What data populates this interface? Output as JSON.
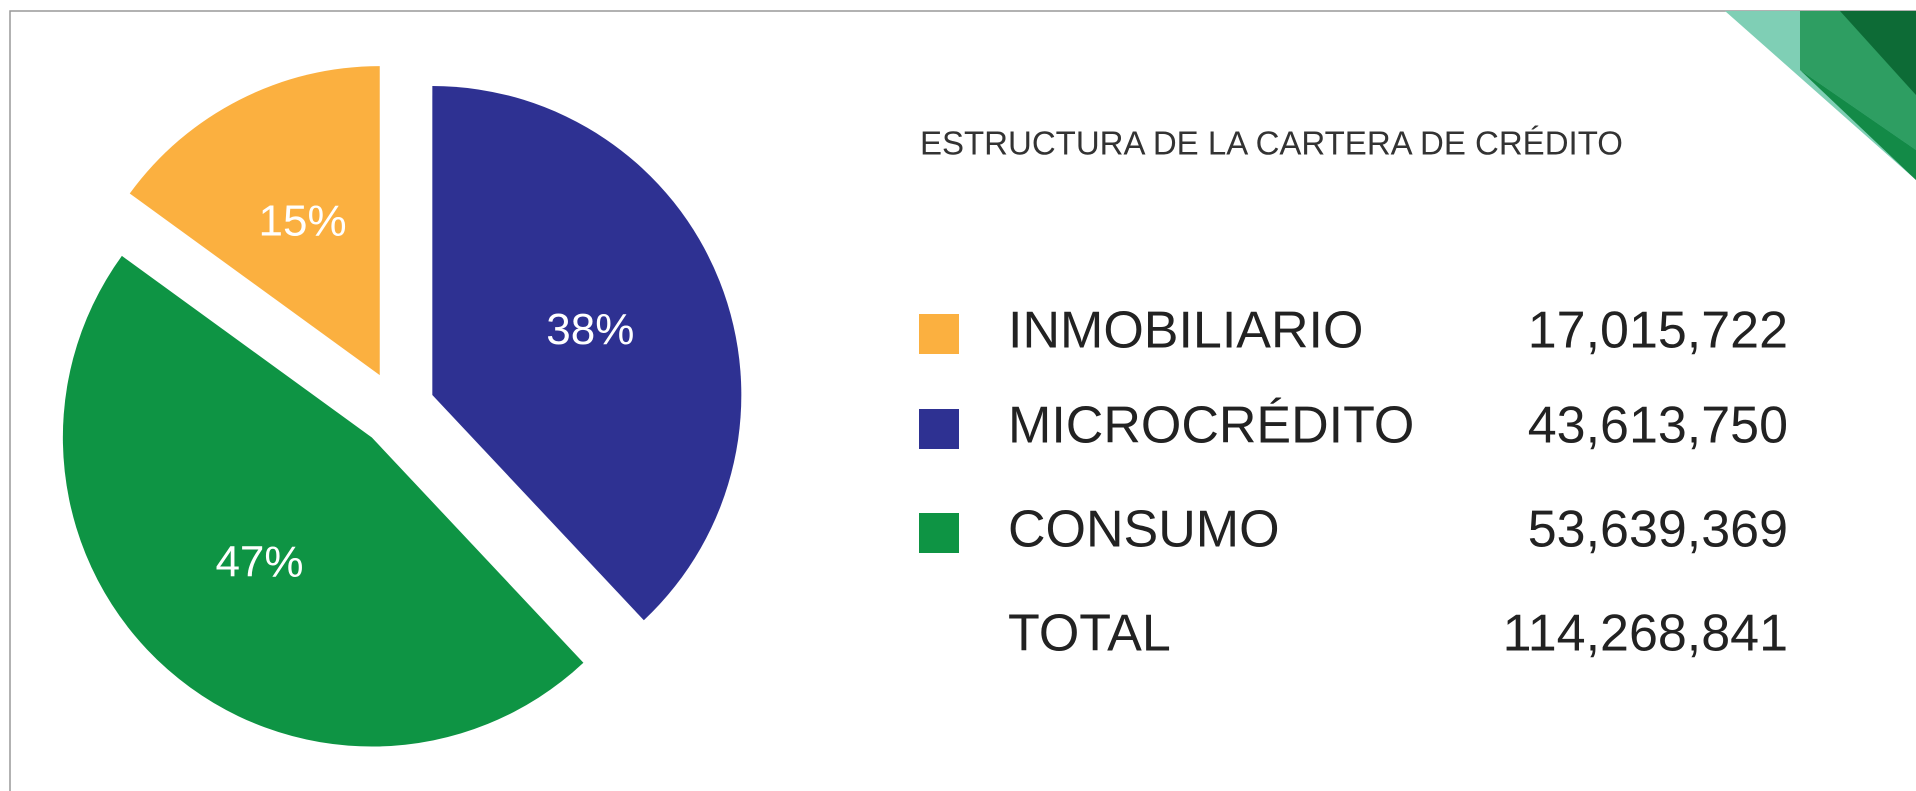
{
  "chart_data": {
    "type": "pie",
    "title": "ESTRUCTURA DE LA CARTERA DE CRÉDITO",
    "categories": [
      "MICROCRÉDITO",
      "CONSUMO",
      "INMOBILIARIO"
    ],
    "values": [
      38,
      47,
      15
    ],
    "value_labels": [
      "38%",
      "47%",
      "15%"
    ],
    "colors": [
      "#2e3192",
      "#0e9444",
      "#fbb040"
    ],
    "legend_order": [
      2,
      0,
      1
    ],
    "amounts": [
      "43,613,750",
      "53,639,369",
      "17,015,722"
    ],
    "total_label": "TOTAL",
    "total": "114,268,841"
  }
}
